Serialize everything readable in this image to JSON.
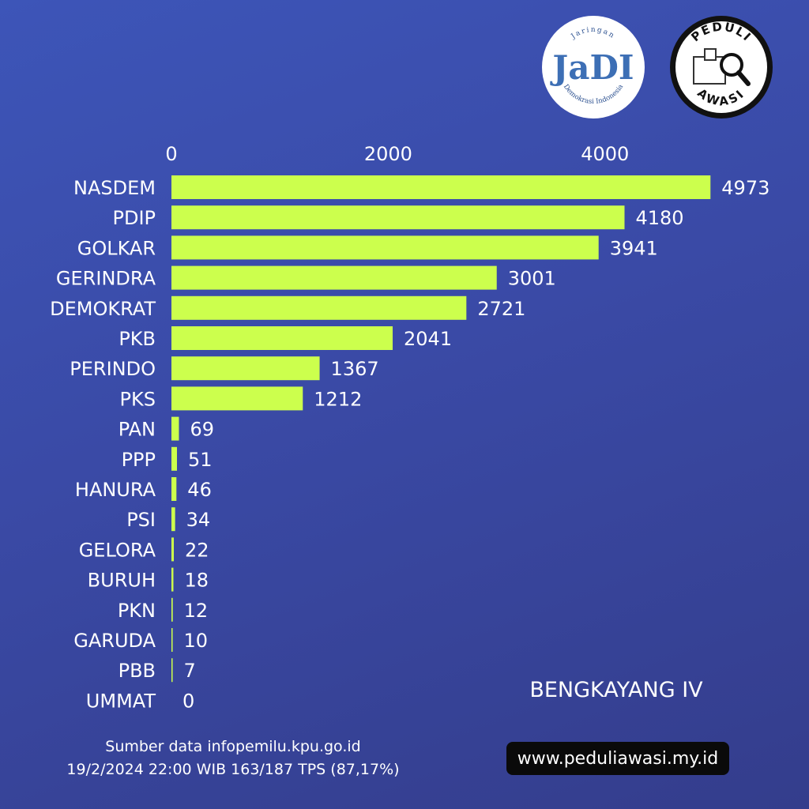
{
  "logos": {
    "jadi": {
      "text": "JaDI",
      "arc_top": "Jaringan",
      "arc_bottom": "Demokrasi Indonesia"
    },
    "peduli": {
      "arc_top": "PEDULI",
      "arc_bottom": "AWASI"
    }
  },
  "chart_data": {
    "type": "bar",
    "orientation": "horizontal",
    "categories": [
      "NASDEM",
      "PDIP",
      "GOLKAR",
      "GERINDRA",
      "DEMOKRAT",
      "PKB",
      "PERINDO",
      "PKS",
      "PAN",
      "PPP",
      "HANURA",
      "PSI",
      "GELORA",
      "BURUH",
      "PKN",
      "GARUDA",
      "PBB",
      "UMMAT"
    ],
    "values": [
      4973,
      4180,
      3941,
      3001,
      2721,
      2041,
      1367,
      1212,
      69,
      51,
      46,
      34,
      22,
      18,
      12,
      10,
      7,
      0
    ],
    "x_ticks": [
      0,
      2000,
      4000
    ],
    "x_axis_position": "top",
    "xlim": [
      0,
      5000
    ],
    "grid": false,
    "bar_color": "#ccff4d",
    "data_labels": true
  },
  "region": "BENGKAYANG IV",
  "source_line1": "Sumber data infopemilu.kpu.go.id",
  "source_line2": "19/2/2024 22:00 WIB 163/187 TPS  (87,17%)",
  "website": "www.peduliawasi.my.id"
}
